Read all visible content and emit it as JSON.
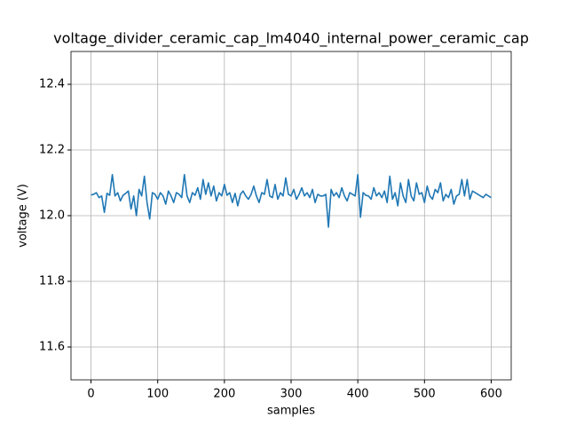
{
  "chart_data": {
    "type": "line",
    "title": "voltage_divider_ceramic_cap_lm4040_internal_power_ceramic_cap",
    "x_label": "samples",
    "y_label": "voltage (V)",
    "x": [
      0,
      4,
      8,
      12,
      16,
      20,
      24,
      28,
      32,
      36,
      40,
      44,
      48,
      52,
      56,
      60,
      64,
      68,
      72,
      76,
      80,
      84,
      88,
      92,
      96,
      100,
      104,
      108,
      112,
      116,
      120,
      124,
      128,
      132,
      136,
      140,
      144,
      148,
      152,
      156,
      160,
      164,
      168,
      172,
      176,
      180,
      184,
      188,
      192,
      196,
      200,
      204,
      208,
      212,
      216,
      220,
      224,
      228,
      232,
      236,
      240,
      244,
      248,
      252,
      256,
      260,
      264,
      268,
      272,
      276,
      280,
      284,
      288,
      292,
      296,
      300,
      304,
      308,
      312,
      316,
      320,
      324,
      328,
      332,
      336,
      340,
      344,
      348,
      352,
      356,
      360,
      364,
      368,
      372,
      376,
      380,
      384,
      388,
      392,
      396,
      400,
      404,
      408,
      412,
      416,
      420,
      424,
      428,
      432,
      436,
      440,
      444,
      448,
      452,
      456,
      460,
      464,
      468,
      472,
      476,
      480,
      484,
      488,
      492,
      496,
      500,
      504,
      508,
      512,
      516,
      520,
      524,
      528,
      532,
      536,
      540,
      544,
      548,
      552,
      556,
      560,
      564,
      568,
      572,
      576,
      580,
      584,
      588,
      592,
      596,
      600
    ],
    "series": [
      {
        "name": "voltage",
        "color": "#1f77b4",
        "values": [
          12.063,
          12.065,
          12.07,
          12.055,
          12.06,
          12.01,
          12.068,
          12.062,
          12.125,
          12.06,
          12.07,
          12.045,
          12.062,
          12.068,
          12.075,
          12.02,
          12.06,
          12.0,
          12.08,
          12.06,
          12.12,
          12.04,
          11.99,
          12.07,
          12.065,
          12.05,
          12.07,
          12.06,
          12.035,
          12.075,
          12.06,
          12.04,
          12.07,
          12.065,
          12.055,
          12.125,
          12.06,
          12.04,
          12.07,
          12.062,
          12.085,
          12.05,
          12.11,
          12.065,
          12.1,
          12.06,
          12.09,
          12.045,
          12.07,
          12.06,
          12.095,
          12.062,
          12.07,
          12.04,
          12.068,
          12.03,
          12.065,
          12.075,
          12.06,
          12.05,
          12.065,
          12.09,
          12.06,
          12.04,
          12.07,
          12.065,
          12.11,
          12.06,
          12.055,
          12.095,
          12.05,
          12.07,
          12.06,
          12.115,
          12.065,
          12.06,
          12.08,
          12.05,
          12.065,
          12.085,
          12.06,
          12.07,
          12.055,
          12.08,
          12.04,
          12.065,
          12.06,
          12.06,
          12.065,
          11.965,
          12.08,
          12.06,
          12.07,
          12.055,
          12.085,
          12.06,
          12.045,
          12.07,
          12.065,
          12.06,
          12.125,
          11.995,
          12.07,
          12.062,
          12.06,
          12.05,
          12.085,
          12.06,
          12.07,
          12.055,
          12.075,
          12.04,
          12.12,
          12.05,
          12.07,
          12.03,
          12.1,
          12.06,
          12.04,
          12.11,
          12.06,
          12.045,
          12.1,
          12.065,
          12.07,
          12.04,
          12.09,
          12.06,
          12.05,
          12.08,
          12.07,
          12.1,
          12.045,
          12.065,
          12.055,
          12.08,
          12.035,
          12.06,
          12.065,
          12.11,
          12.06,
          12.11,
          12.05,
          12.075,
          12.07,
          12.065,
          12.06,
          12.055,
          12.065,
          12.06,
          12.055
        ]
      }
    ],
    "xlim": [
      -30,
      630
    ],
    "xticks": [
      0,
      100,
      200,
      300,
      400,
      500,
      600
    ],
    "ylim": [
      11.5,
      12.5
    ],
    "yticks": [
      11.6,
      11.8,
      {
        "value": 12.0,
        "label": "12.0"
      },
      12.2,
      12.4
    ],
    "grid": true
  }
}
